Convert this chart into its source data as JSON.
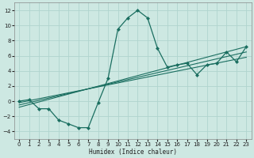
{
  "xlabel": "Humidex (Indice chaleur)",
  "background_color": "#cde8e2",
  "grid_color": "#b0d4ce",
  "line_color": "#1a6e60",
  "x_data": [
    0,
    1,
    2,
    3,
    4,
    5,
    6,
    7,
    8,
    9,
    10,
    11,
    12,
    13,
    14,
    15,
    16,
    17,
    18,
    19,
    20,
    21,
    22,
    23
  ],
  "line1_y": [
    0.0,
    0.2,
    -1.0,
    -1.0,
    -2.5,
    -3.0,
    -3.5,
    -3.5,
    -0.2,
    3.0,
    9.5,
    11.0,
    12.0,
    11.0,
    7.0,
    4.5,
    4.8,
    5.0,
    3.5,
    4.8,
    5.0,
    6.5,
    5.2,
    7.2
  ],
  "trend1_x": [
    0,
    23
  ],
  "trend1_y": [
    -0.8,
    7.2
  ],
  "trend2_x": [
    0,
    23
  ],
  "trend2_y": [
    -0.5,
    6.5
  ],
  "trend3_x": [
    0,
    23
  ],
  "trend3_y": [
    -0.2,
    5.8
  ],
  "ylim": [
    -5,
    13
  ],
  "xlim": [
    -0.5,
    23.5
  ],
  "yticks": [
    -4,
    -2,
    0,
    2,
    4,
    6,
    8,
    10,
    12
  ],
  "xticks": [
    0,
    1,
    2,
    3,
    4,
    5,
    6,
    7,
    8,
    9,
    10,
    11,
    12,
    13,
    14,
    15,
    16,
    17,
    18,
    19,
    20,
    21,
    22,
    23
  ]
}
